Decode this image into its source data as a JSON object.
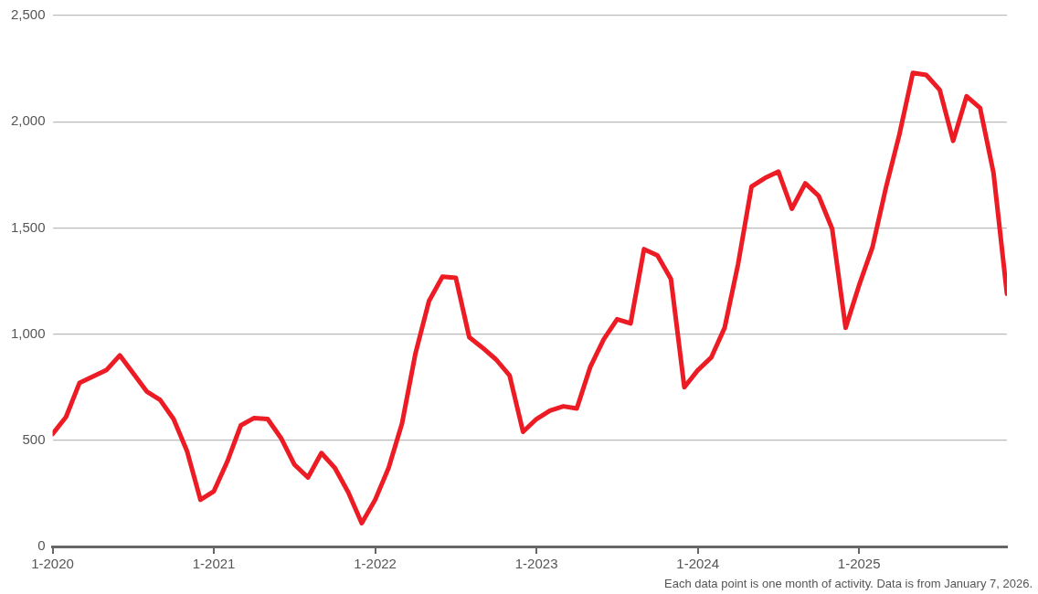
{
  "chart_data": {
    "type": "line",
    "x": [
      "2020-01",
      "2020-02",
      "2020-03",
      "2020-04",
      "2020-05",
      "2020-06",
      "2020-07",
      "2020-08",
      "2020-09",
      "2020-10",
      "2020-11",
      "2020-12",
      "2021-01",
      "2021-02",
      "2021-03",
      "2021-04",
      "2021-05",
      "2021-06",
      "2021-07",
      "2021-08",
      "2021-09",
      "2021-10",
      "2021-11",
      "2021-12",
      "2022-01",
      "2022-02",
      "2022-03",
      "2022-04",
      "2022-05",
      "2022-06",
      "2022-07",
      "2022-08",
      "2022-09",
      "2022-10",
      "2022-11",
      "2022-12",
      "2023-01",
      "2023-02",
      "2023-03",
      "2023-04",
      "2023-05",
      "2023-06",
      "2023-07",
      "2023-08",
      "2023-09",
      "2023-10",
      "2023-11",
      "2023-12",
      "2024-01",
      "2024-02",
      "2024-03",
      "2024-04",
      "2024-05",
      "2024-06",
      "2024-07",
      "2024-08",
      "2024-09",
      "2024-10",
      "2024-11",
      "2024-12",
      "2025-01",
      "2025-02",
      "2025-03",
      "2025-04",
      "2025-05",
      "2025-06",
      "2025-07",
      "2025-08",
      "2025-09",
      "2025-10",
      "2025-11",
      "2025-12"
    ],
    "series": [
      {
        "color": "#ed1c24",
        "values": [
          530,
          610,
          770,
          800,
          830,
          900,
          815,
          730,
          690,
          600,
          450,
          220,
          260,
          400,
          570,
          605,
          600,
          510,
          385,
          325,
          440,
          370,
          255,
          110,
          220,
          370,
          580,
          910,
          1155,
          1270,
          1265,
          985,
          935,
          880,
          805,
          540,
          600,
          640,
          660,
          650,
          845,
          975,
          1070,
          1050,
          1400,
          1370,
          1260,
          750,
          830,
          890,
          1030,
          1330,
          1695,
          1735,
          1765,
          1590,
          1710,
          1650,
          1495,
          1030,
          1230,
          1410,
          1690,
          1940,
          2230,
          2220,
          2150,
          1910,
          2120,
          2065,
          1760,
          1190
        ]
      }
    ],
    "xlim": [
      "2020-01",
      "2025-12"
    ],
    "xticks": [
      {
        "value": "2020-01",
        "label": "1-2020"
      },
      {
        "value": "2021-01",
        "label": "1-2021"
      },
      {
        "value": "2022-01",
        "label": "1-2022"
      },
      {
        "value": "2023-01",
        "label": "1-2023"
      },
      {
        "value": "2024-01",
        "label": "1-2024"
      },
      {
        "value": "2025-01",
        "label": "1-2025"
      }
    ],
    "ylim": [
      0,
      2500
    ],
    "yticks": [
      0,
      {
        "value": 500,
        "label": "500"
      },
      {
        "value": 1000,
        "label": "1,000"
      },
      {
        "value": 1500,
        "label": "1,500"
      },
      {
        "value": 2000,
        "label": "2,000"
      },
      {
        "value": 2500,
        "label": "2,500"
      }
    ],
    "grid": "y",
    "marker": "none",
    "line_style": "solid",
    "annotations": [
      "Each data point is one month of activity. Data is from January 7, 2026."
    ]
  }
}
